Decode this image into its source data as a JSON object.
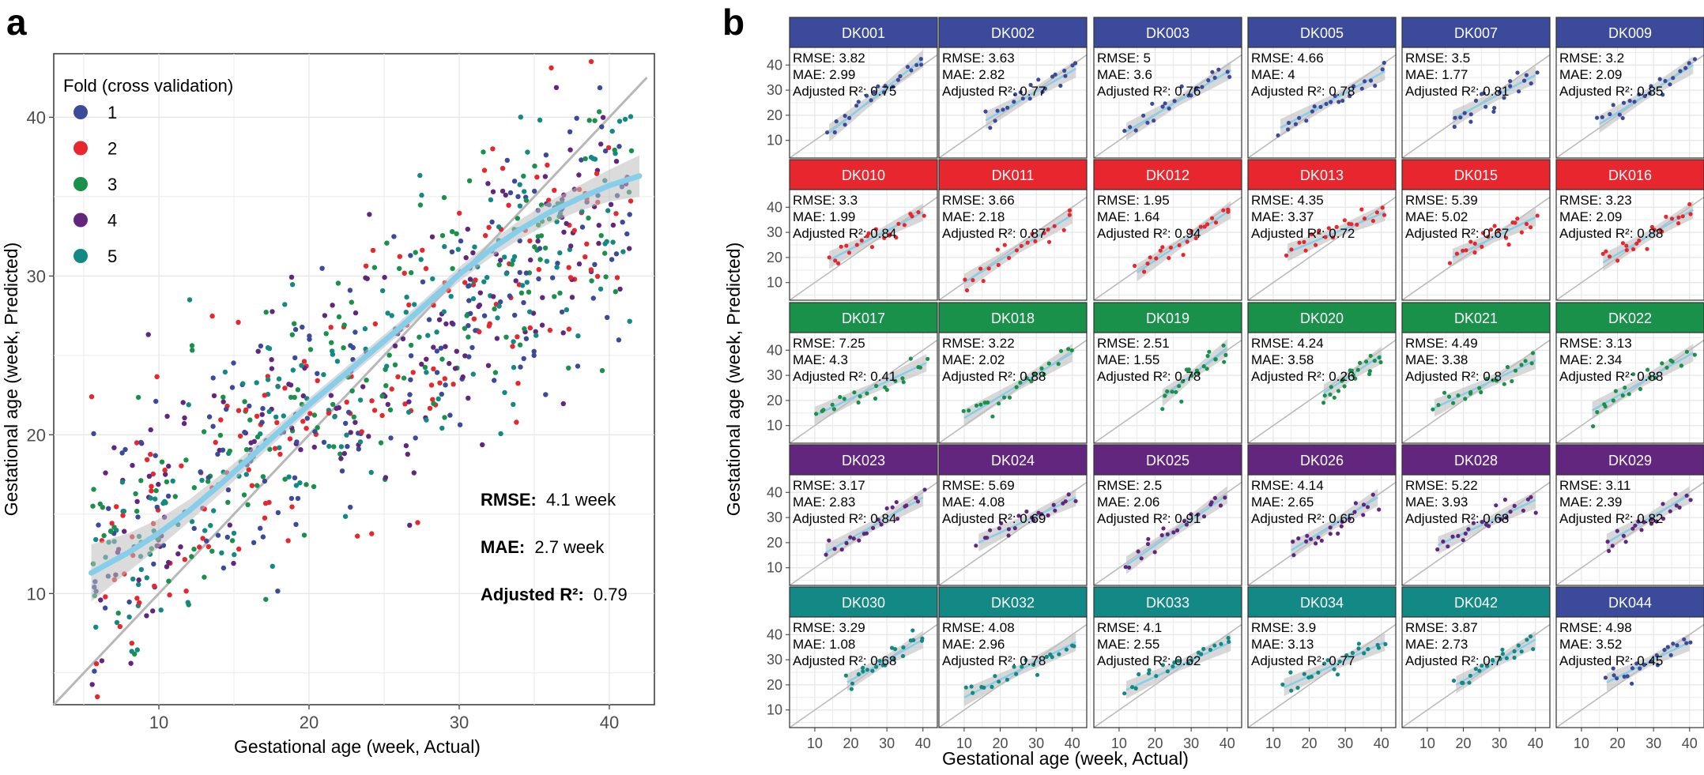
{
  "panels": {
    "a_label": "a",
    "b_label": "b"
  },
  "colors": {
    "fold_1": "#3b4a9a",
    "fold_2": "#e8262d",
    "fold_3": "#19914a",
    "fold_4": "#63267e",
    "fold_5": "#138985",
    "smooth": "#87ceeb",
    "ribbon": "#bebebe",
    "identity": "#b8b8b8"
  },
  "chart_data": [
    {
      "type": "scatter",
      "panel": "a",
      "xlabel": "Gestational age (week, Actual)",
      "ylabel": "Gestational age (week, Predicted)",
      "xlim": [
        3,
        43
      ],
      "ylim": [
        3,
        44
      ],
      "xticks": [
        10,
        20,
        30,
        40
      ],
      "yticks": [
        10,
        20,
        30,
        40
      ],
      "grid": true,
      "legend": {
        "title": "Fold (cross validation)",
        "placement": "top-left",
        "entries": [
          "1",
          "2",
          "3",
          "4",
          "5"
        ]
      },
      "reference_line": "identity (y = x)",
      "smooth": {
        "x": [
          5.5,
          8,
          10,
          12,
          14,
          16,
          18,
          20,
          22,
          24,
          26,
          28,
          30,
          32,
          34,
          36,
          38,
          40,
          42
        ],
        "y": [
          11.3,
          12.6,
          13.8,
          15.2,
          16.8,
          18.5,
          20.2,
          21.9,
          23.5,
          25.1,
          26.7,
          28.4,
          30.1,
          31.6,
          32.9,
          34.0,
          34.9,
          35.7,
          36.3
        ],
        "ribbon_halfwidth": [
          1.8,
          1.2,
          0.9,
          0.7,
          0.6,
          0.5,
          0.45,
          0.4,
          0.4,
          0.4,
          0.4,
          0.4,
          0.45,
          0.5,
          0.6,
          0.7,
          0.8,
          1.0,
          1.3
        ]
      },
      "n_points_per_fold": 170,
      "stats": {
        "rmse_label": "RMSE:",
        "rmse_value": "4.1 week",
        "mae_label": "MAE:",
        "mae_value": "2.7 week",
        "r2_label": "Adjusted R²:",
        "r2_value": "0.79"
      }
    },
    {
      "type": "scatter",
      "panel": "b",
      "xlabel": "Gestational age (week, Actual)",
      "ylabel": "Gestational age (week, Predicted)",
      "xlim": [
        3,
        44
      ],
      "ylim": [
        3,
        47
      ],
      "xticks": [
        10,
        20,
        30,
        40
      ],
      "yticks": [
        10,
        20,
        30,
        40
      ],
      "grid": true,
      "reference_line": "identity (y = x)",
      "facets": [
        {
          "name": "DK001",
          "fold": 1,
          "rmse": "3.82",
          "mae": "2.99",
          "r2": "0.75",
          "xrange": [
            14,
            40
          ],
          "shift": [
            -1,
            2.5
          ]
        },
        {
          "name": "DK002",
          "fold": 1,
          "rmse": "3.63",
          "mae": "2.82",
          "r2": "0.77",
          "xrange": [
            16,
            41
          ],
          "shift": [
            2,
            -2.5
          ]
        },
        {
          "name": "DK003",
          "fold": 1,
          "rmse": "5",
          "mae": "3.6",
          "r2": "0.76",
          "xrange": [
            12,
            41
          ],
          "shift": [
            1.5,
            -3
          ]
        },
        {
          "name": "DK005",
          "fold": 1,
          "rmse": "4.66",
          "mae": "4",
          "r2": "0.78",
          "xrange": [
            12,
            41
          ],
          "shift": [
            3,
            -3.5
          ]
        },
        {
          "name": "DK007",
          "fold": 1,
          "rmse": "3.5",
          "mae": "1.77",
          "r2": "0.81",
          "xrange": [
            17,
            40
          ],
          "shift": [
            1.5,
            -4
          ]
        },
        {
          "name": "DK009",
          "fold": 1,
          "rmse": "3.2",
          "mae": "2.09",
          "r2": "0.85",
          "xrange": [
            15,
            41
          ],
          "shift": [
            1.5,
            -1
          ]
        },
        {
          "name": "DK010",
          "fold": 2,
          "rmse": "3.3",
          "mae": "1.99",
          "r2": "0.84",
          "xrange": [
            14,
            40
          ],
          "shift": [
            5,
            -2
          ]
        },
        {
          "name": "DK011",
          "fold": 2,
          "rmse": "3.66",
          "mae": "2.18",
          "r2": "0.87",
          "xrange": [
            10,
            40
          ],
          "shift": [
            0,
            -3
          ]
        },
        {
          "name": "DK012",
          "fold": 2,
          "rmse": "1.95",
          "mae": "1.64",
          "r2": "0.94",
          "xrange": [
            15,
            41
          ],
          "shift": [
            -1,
            -2
          ]
        },
        {
          "name": "DK013",
          "fold": 2,
          "rmse": "4.35",
          "mae": "3.37",
          "r2": "0.72",
          "xrange": [
            14,
            41
          ],
          "shift": [
            8,
            -3
          ]
        },
        {
          "name": "DK015",
          "fold": 2,
          "rmse": "5.39",
          "mae": "5.02",
          "r2": "0.67",
          "xrange": [
            17,
            40
          ],
          "shift": [
            3,
            -4
          ]
        },
        {
          "name": "DK016",
          "fold": 2,
          "rmse": "3.23",
          "mae": "2.09",
          "r2": "0.88",
          "xrange": [
            16,
            41
          ],
          "shift": [
            2,
            -2
          ]
        },
        {
          "name": "DK017",
          "fold": 3,
          "rmse": "7.25",
          "mae": "4.3",
          "r2": "0.41",
          "xrange": [
            10,
            41
          ],
          "shift": [
            4,
            -6
          ]
        },
        {
          "name": "DK018",
          "fold": 3,
          "rmse": "3.22",
          "mae": "2.02",
          "r2": "0.88",
          "xrange": [
            10,
            40
          ],
          "shift": [
            3,
            -1
          ]
        },
        {
          "name": "DK019",
          "fold": 3,
          "rmse": "2.51",
          "mae": "1.55",
          "r2": "0.78",
          "xrange": [
            22,
            40
          ],
          "shift": [
            -1,
            1
          ]
        },
        {
          "name": "DK020",
          "fold": 3,
          "rmse": "4.24",
          "mae": "3.58",
          "r2": "0.26",
          "xrange": [
            24,
            40
          ],
          "shift": [
            -1,
            -2
          ]
        },
        {
          "name": "DK021",
          "fold": 3,
          "rmse": "4.49",
          "mae": "3.38",
          "r2": "0.8",
          "xrange": [
            12,
            40
          ],
          "shift": [
            5,
            -4
          ]
        },
        {
          "name": "DK022",
          "fold": 3,
          "rmse": "3.13",
          "mae": "2.34",
          "r2": "0.88",
          "xrange": [
            13,
            41
          ],
          "shift": [
            3,
            -2
          ]
        },
        {
          "name": "DK023",
          "fold": 4,
          "rmse": "3.17",
          "mae": "2.83",
          "r2": "0.84",
          "xrange": [
            13,
            40
          ],
          "shift": [
            3,
            -2
          ]
        },
        {
          "name": "DK024",
          "fold": 4,
          "rmse": "5.69",
          "mae": "4.08",
          "r2": "0.69",
          "xrange": [
            14,
            41
          ],
          "shift": [
            6,
            -3
          ]
        },
        {
          "name": "DK025",
          "fold": 4,
          "rmse": "2.5",
          "mae": "2.06",
          "r2": "0.91",
          "xrange": [
            12,
            40
          ],
          "shift": [
            -1,
            -1
          ]
        },
        {
          "name": "DK026",
          "fold": 4,
          "rmse": "4.14",
          "mae": "2.65",
          "r2": "0.65",
          "xrange": [
            15,
            39
          ],
          "shift": [
            2,
            -1
          ]
        },
        {
          "name": "DK028",
          "fold": 4,
          "rmse": "5.22",
          "mae": "3.93",
          "r2": "0.68",
          "xrange": [
            13,
            40
          ],
          "shift": [
            6,
            -3
          ]
        },
        {
          "name": "DK029",
          "fold": 4,
          "rmse": "3.11",
          "mae": "2.39",
          "r2": "0.82",
          "xrange": [
            17,
            40
          ],
          "shift": [
            3,
            -1
          ]
        },
        {
          "name": "DK030",
          "fold": 5,
          "rmse": "3.29",
          "mae": "1.08",
          "r2": "0.68",
          "xrange": [
            19,
            40
          ],
          "shift": [
            2,
            -2
          ]
        },
        {
          "name": "DK032",
          "fold": 5,
          "rmse": "4.08",
          "mae": "2.96",
          "r2": "0.78",
          "xrange": [
            10,
            41
          ],
          "shift": [
            5,
            -4
          ]
        },
        {
          "name": "DK033",
          "fold": 5,
          "rmse": "4.1",
          "mae": "2.55",
          "r2": "0.62",
          "xrange": [
            12,
            41
          ],
          "shift": [
            6,
            -4
          ]
        },
        {
          "name": "DK034",
          "fold": 5,
          "rmse": "3.9",
          "mae": "3.13",
          "r2": "0.77",
          "xrange": [
            13,
            41
          ],
          "shift": [
            6,
            -4
          ]
        },
        {
          "name": "DK042",
          "fold": 5,
          "rmse": "3.87",
          "mae": "2.73",
          "r2": "0.7",
          "xrange": [
            18,
            40
          ],
          "shift": [
            2,
            -2
          ]
        },
        {
          "name": "DK044",
          "fold": 1,
          "rmse": "4.98",
          "mae": "3.52",
          "r2": "0.45",
          "xrange": [
            17,
            40
          ],
          "shift": [
            4,
            -3
          ]
        }
      ],
      "facet_stat_labels": {
        "rmse": "RMSE: ",
        "mae": "MAE: ",
        "r2": "Adjusted R²: "
      }
    }
  ]
}
